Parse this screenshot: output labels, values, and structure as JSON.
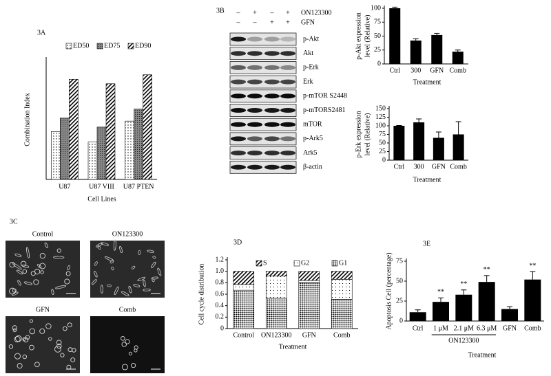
{
  "blot": {
    "label": "3B",
    "treatments": [
      {
        "name": "ON123300",
        "signs": [
          "–",
          "+",
          "–",
          "+"
        ]
      },
      {
        "name": "GFN",
        "signs": [
          "–",
          "–",
          "+",
          "+"
        ]
      }
    ],
    "rows": [
      "p-Akt",
      "Akt",
      "p-Erk",
      "Erk",
      "p-mTOR S2448",
      "p-mTORS2481",
      "mTOR",
      "p-Ark5",
      "Ark5",
      "β-actin"
    ]
  },
  "micrographs": {
    "label": "3C",
    "images": [
      "Control",
      "ON123300",
      "GFN",
      "Comb"
    ]
  },
  "chart_data": [
    {
      "type": "bar",
      "label": "3A",
      "ylabel": "Combination Index",
      "xlabel": "Cell Lines",
      "categories": [
        "U87",
        "U87 VIII",
        "U87 PTEN"
      ],
      "series": [
        {
          "name": "ED50",
          "pattern": "dots",
          "values": [
            0.32,
            0.25,
            0.39
          ]
        },
        {
          "name": "ED75",
          "pattern": "grey",
          "values": [
            0.41,
            0.35,
            0.47
          ]
        },
        {
          "name": "ED90",
          "pattern": "stripes",
          "values": [
            0.67,
            0.64,
            0.7
          ]
        }
      ],
      "ylim": [
        0,
        0.8
      ],
      "legend": "top"
    },
    {
      "type": "bar",
      "ylabel": [
        "p-Akt expression",
        "level (Relative)"
      ],
      "xlabel": "Treatment",
      "categories": [
        "Ctrl",
        "300",
        "GFN",
        "Comb"
      ],
      "values": [
        100,
        42,
        52,
        22
      ],
      "errors": [
        2,
        3,
        3,
        3
      ],
      "color": "#000000",
      "ylim": [
        0,
        100
      ],
      "yticks": [
        0,
        25,
        50,
        75,
        100
      ]
    },
    {
      "type": "bar",
      "ylabel": [
        "p-Erk expression",
        "level (Relative)"
      ],
      "xlabel": "Treatment",
      "categories": [
        "Ctrl",
        "300",
        "GFN",
        "Comb"
      ],
      "values": [
        100,
        110,
        65,
        75
      ],
      "errors": [
        1,
        10,
        17,
        37
      ],
      "color": "#000000",
      "ylim": [
        0,
        150
      ],
      "yticks": [
        0,
        25,
        50,
        75,
        100,
        125,
        150
      ]
    },
    {
      "type": "bar",
      "stacked": true,
      "label": "3D",
      "ylabel": "Cell cycle distribution",
      "xlabel": "Treatment",
      "categories": [
        "Control",
        "ON123300",
        "GFN",
        "Comb"
      ],
      "series": [
        {
          "name": "G1",
          "pattern": "dense",
          "values": [
            0.67,
            0.53,
            0.81,
            0.51
          ]
        },
        {
          "name": "G2",
          "pattern": "sparse",
          "values": [
            0.1,
            0.39,
            0.03,
            0.35
          ]
        },
        {
          "name": "S",
          "pattern": "stripes",
          "values": [
            0.23,
            0.08,
            0.16,
            0.14
          ]
        }
      ],
      "ylim": [
        0,
        1.2
      ],
      "yticks": [
        0,
        0.2,
        0.4,
        0.6,
        0.8,
        {
          "value": 1,
          "label": "1.0"
        },
        1.2
      ],
      "legend": "top"
    },
    {
      "type": "bar",
      "label": "3E",
      "ylabel": "Apoptosis Cell (percentage)",
      "xlabel": "Treatment",
      "categories": [
        "Ctrl",
        "1 μM",
        "2.1 μM",
        "6.3 μM",
        "GFN",
        "Comb"
      ],
      "values": [
        11,
        24,
        33,
        49,
        15,
        52
      ],
      "errors": [
        3,
        5,
        6,
        8,
        3,
        10
      ],
      "value_annotations": [
        null,
        "**",
        "**",
        "**",
        null,
        "**"
      ],
      "group": {
        "label": "ON123300",
        "span": [
          1,
          3
        ]
      },
      "color": "#000000",
      "ylim": [
        0,
        75
      ],
      "yticks": [
        0,
        25,
        50,
        75
      ]
    }
  ]
}
